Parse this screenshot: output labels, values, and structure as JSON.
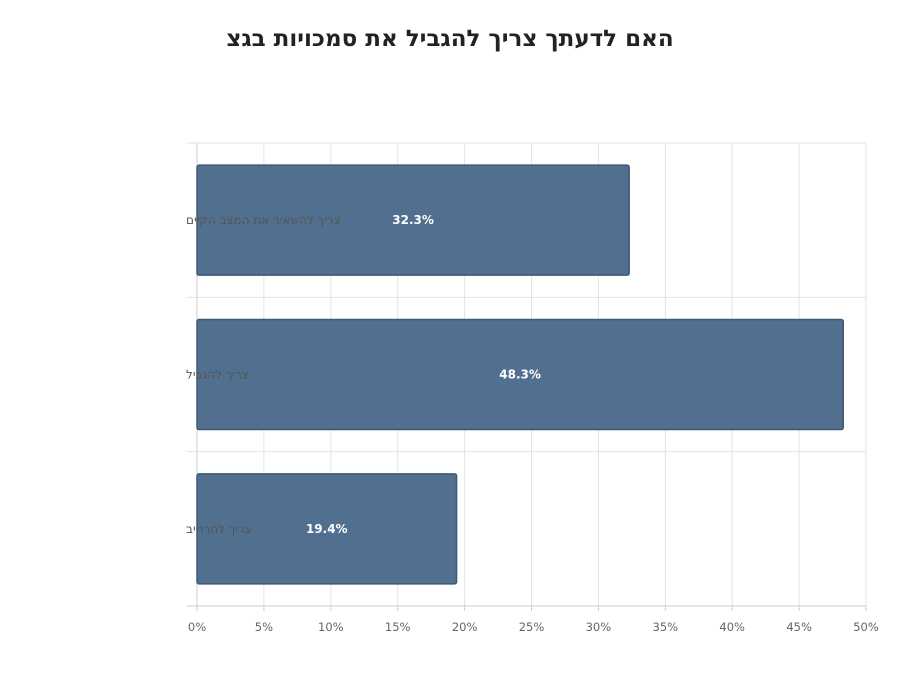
{
  "chart_data": {
    "type": "bar",
    "orientation": "horizontal",
    "title": "האם לדעתך צריך להגביל את סמכויות בגצ",
    "categories": [
      "צריך להשאיר את המצב הקיים",
      "צריך להגביל",
      "צריך להרחיב"
    ],
    "values": [
      32.3,
      48.3,
      19.4
    ],
    "data_labels": [
      "32.3%",
      "48.3%",
      "19.4%"
    ],
    "xlim": [
      0,
      50
    ],
    "x_ticks": [
      "0%",
      "5%",
      "10%",
      "15%",
      "20%",
      "25%",
      "30%",
      "35%",
      "40%",
      "45%",
      "50%"
    ],
    "xlabel": "",
    "ylabel": "",
    "grid": true,
    "bar_color": "#51708f"
  }
}
